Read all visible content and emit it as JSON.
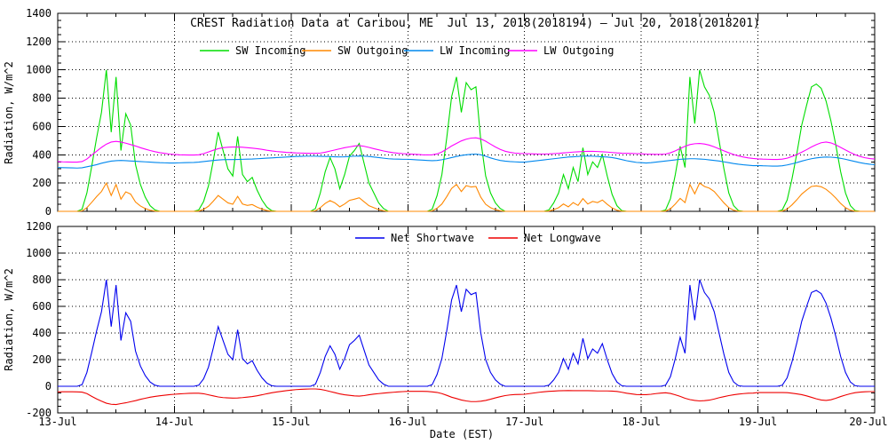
{
  "figure_bg": "#ffffff",
  "chart_data": [
    {
      "type": "line",
      "panel": "top",
      "title": "CREST Radiation Data at Caribou, ME  Jul 13, 2018(2018194) – Jul 20, 2018(2018201)",
      "ylabel": "Radiation, W/m^2",
      "ylim": [
        0,
        1400
      ],
      "yticks": [
        0,
        200,
        400,
        600,
        800,
        1000,
        1200,
        1400
      ],
      "y_minor_step": 50,
      "x_unit": "hours since Jul 13 00:00 EST",
      "x_range_hours": [
        0,
        168
      ],
      "xticks_hours": [
        0,
        24,
        48,
        72,
        96,
        120,
        144,
        168
      ],
      "x_minor_step_hours": 6,
      "xtick_labels": [
        "13-Jul",
        "14-Jul",
        "15-Jul",
        "16-Jul",
        "17-Jul",
        "18-Jul",
        "19-Jul",
        "20-Jul"
      ],
      "grid": "dotted",
      "legend_position": "top-inside",
      "series": [
        {
          "name": "SW Incoming",
          "color": "#00dd00",
          "values": [
            0,
            0,
            0,
            0,
            0,
            15,
            130,
            320,
            520,
            700,
            1000,
            560,
            950,
            430,
            690,
            610,
            330,
            190,
            100,
            40,
            10,
            0,
            0,
            0,
            0,
            0,
            0,
            0,
            0,
            10,
            70,
            180,
            360,
            560,
            430,
            300,
            250,
            530,
            260,
            210,
            240,
            150,
            80,
            30,
            5,
            0,
            0,
            0,
            0,
            0,
            0,
            0,
            0,
            20,
            130,
            280,
            380,
            300,
            160,
            260,
            390,
            430,
            480,
            340,
            200,
            130,
            60,
            20,
            0,
            0,
            0,
            0,
            0,
            0,
            0,
            0,
            0,
            15,
            110,
            260,
            520,
            810,
            950,
            700,
            910,
            860,
            880,
            500,
            250,
            130,
            60,
            20,
            0,
            0,
            0,
            0,
            0,
            0,
            0,
            0,
            0,
            10,
            60,
            130,
            260,
            160,
            310,
            210,
            450,
            260,
            350,
            310,
            400,
            250,
            120,
            40,
            5,
            0,
            0,
            0,
            0,
            0,
            0,
            0,
            0,
            10,
            90,
            260,
            460,
            310,
            950,
            620,
            1000,
            880,
            820,
            700,
            500,
            300,
            130,
            40,
            5,
            0,
            0,
            0,
            0,
            0,
            0,
            0,
            0,
            10,
            80,
            230,
            410,
            610,
            750,
            880,
            900,
            870,
            780,
            640,
            470,
            280,
            130,
            40,
            5,
            0,
            0,
            0,
            0
          ]
        },
        {
          "name": "SW Outgoing",
          "color": "#ff8800",
          "values": [
            0,
            0,
            0,
            0,
            0,
            3,
            26,
            64,
            104,
            140,
            200,
            112,
            190,
            86,
            138,
            122,
            66,
            38,
            20,
            8,
            2,
            0,
            0,
            0,
            0,
            0,
            0,
            0,
            0,
            2,
            14,
            36,
            72,
            112,
            86,
            60,
            50,
            106,
            52,
            42,
            48,
            30,
            16,
            6,
            1,
            0,
            0,
            0,
            0,
            0,
            0,
            0,
            0,
            4,
            26,
            56,
            76,
            60,
            32,
            52,
            78,
            86,
            96,
            68,
            40,
            26,
            12,
            4,
            0,
            0,
            0,
            0,
            0,
            0,
            0,
            0,
            0,
            3,
            22,
            52,
            104,
            162,
            190,
            140,
            182,
            172,
            176,
            100,
            50,
            26,
            12,
            4,
            0,
            0,
            0,
            0,
            0,
            0,
            0,
            0,
            0,
            2,
            12,
            26,
            52,
            32,
            62,
            42,
            90,
            52,
            70,
            62,
            80,
            50,
            24,
            8,
            1,
            0,
            0,
            0,
            0,
            0,
            0,
            0,
            0,
            2,
            18,
            52,
            92,
            62,
            190,
            124,
            200,
            176,
            164,
            140,
            100,
            60,
            26,
            8,
            1,
            0,
            0,
            0,
            0,
            0,
            0,
            0,
            0,
            2,
            16,
            46,
            82,
            122,
            150,
            176,
            180,
            174,
            156,
            128,
            94,
            56,
            26,
            8,
            1,
            0,
            0,
            0,
            0
          ]
        },
        {
          "name": "LW Incoming",
          "color": "#0088ee",
          "values": [
            310,
            309,
            308,
            307,
            306,
            308,
            315,
            322,
            330,
            340,
            348,
            355,
            358,
            360,
            358,
            356,
            354,
            352,
            350,
            348,
            346,
            344,
            343,
            342,
            342,
            343,
            344,
            345,
            346,
            348,
            352,
            356,
            360,
            363,
            365,
            366,
            366,
            367,
            368,
            369,
            370,
            372,
            374,
            376,
            378,
            380,
            382,
            384,
            386,
            388,
            389,
            390,
            390,
            390,
            389,
            388,
            387,
            386,
            385,
            386,
            388,
            390,
            391,
            390,
            388,
            384,
            380,
            376,
            372,
            370,
            369,
            368,
            368,
            366,
            364,
            362,
            360,
            358,
            360,
            365,
            372,
            380,
            388,
            395,
            400,
            403,
            405,
            400,
            390,
            378,
            368,
            360,
            355,
            352,
            350,
            348,
            348,
            352,
            356,
            360,
            364,
            368,
            372,
            376,
            380,
            384,
            386,
            388,
            390,
            391,
            390,
            388,
            386,
            384,
            380,
            374,
            366,
            358,
            352,
            346,
            344,
            342,
            344,
            348,
            352,
            356,
            360,
            364,
            368,
            370,
            372,
            372,
            370,
            368,
            364,
            360,
            356,
            350,
            344,
            338,
            333,
            329,
            326,
            323,
            324,
            322,
            321,
            320,
            320,
            322,
            328,
            336,
            345,
            355,
            364,
            372,
            378,
            382,
            384,
            383,
            380,
            375,
            368,
            360,
            352,
            344,
            338,
            333,
            330
          ]
        },
        {
          "name": "LW Outgoing",
          "color": "#ff00ff",
          "values": [
            352,
            350,
            349,
            348,
            348,
            352,
            370,
            398,
            425,
            452,
            475,
            490,
            495,
            490,
            482,
            472,
            462,
            450,
            440,
            430,
            422,
            415,
            410,
            405,
            402,
            400,
            399,
            398,
            398,
            400,
            408,
            420,
            432,
            443,
            450,
            453,
            455,
            455,
            453,
            450,
            447,
            443,
            438,
            432,
            427,
            423,
            420,
            417,
            415,
            413,
            412,
            411,
            410,
            410,
            412,
            418,
            426,
            434,
            442,
            450,
            456,
            462,
            465,
            460,
            452,
            443,
            435,
            427,
            420,
            415,
            411,
            408,
            406,
            404,
            402,
            400,
            399,
            400,
            406,
            420,
            440,
            462,
            480,
            498,
            510,
            518,
            520,
            512,
            496,
            475,
            455,
            438,
            425,
            417,
            412,
            409,
            408,
            407,
            406,
            405,
            405,
            406,
            408,
            410,
            413,
            416,
            419,
            421,
            423,
            424,
            424,
            423,
            421,
            419,
            416,
            413,
            411,
            410,
            409,
            408,
            407,
            405,
            404,
            403,
            403,
            405,
            414,
            428,
            444,
            460,
            472,
            478,
            480,
            476,
            468,
            456,
            442,
            428,
            414,
            402,
            392,
            384,
            378,
            374,
            371,
            369,
            368,
            367,
            367,
            369,
            376,
            388,
            402,
            418,
            436,
            455,
            472,
            485,
            490,
            484,
            470,
            452,
            434,
            416,
            400,
            388,
            379,
            373,
            370
          ]
        }
      ]
    },
    {
      "type": "line",
      "panel": "bottom",
      "ylabel": "Radiation, W/m^2",
      "xlabel": "Date (EST)",
      "ylim": [
        -200,
        1200
      ],
      "yticks": [
        -200,
        0,
        200,
        400,
        600,
        800,
        1000,
        1200
      ],
      "y_minor_step": 50,
      "x_unit": "hours since Jul 13 00:00 EST",
      "x_range_hours": [
        0,
        168
      ],
      "xticks_hours": [
        0,
        24,
        48,
        72,
        96,
        120,
        144,
        168
      ],
      "x_minor_step_hours": 6,
      "xtick_labels": [
        "13-Jul",
        "14-Jul",
        "15-Jul",
        "16-Jul",
        "17-Jul",
        "18-Jul",
        "19-Jul",
        "20-Jul"
      ],
      "grid": "dotted",
      "legend_position": "top-inside",
      "series": [
        {
          "name": "Net Shortwave",
          "color": "#0000ee",
          "values": [
            0,
            0,
            0,
            0,
            0,
            12,
            104,
            256,
            416,
            560,
            800,
            448,
            760,
            344,
            552,
            488,
            264,
            152,
            80,
            32,
            8,
            0,
            0,
            0,
            0,
            0,
            0,
            0,
            0,
            8,
            56,
            144,
            288,
            448,
            344,
            240,
            200,
            424,
            208,
            168,
            192,
            120,
            64,
            24,
            4,
            0,
            0,
            0,
            0,
            0,
            0,
            0,
            0,
            16,
            104,
            224,
            304,
            240,
            128,
            208,
            312,
            344,
            384,
            272,
            160,
            104,
            48,
            16,
            0,
            0,
            0,
            0,
            0,
            0,
            0,
            0,
            0,
            12,
            88,
            208,
            416,
            648,
            760,
            560,
            728,
            688,
            704,
            400,
            200,
            104,
            48,
            16,
            0,
            0,
            0,
            0,
            0,
            0,
            0,
            0,
            0,
            8,
            48,
            104,
            208,
            128,
            248,
            168,
            360,
            208,
            280,
            248,
            320,
            200,
            96,
            32,
            4,
            0,
            0,
            0,
            0,
            0,
            0,
            0,
            0,
            8,
            72,
            208,
            368,
            248,
            760,
            496,
            800,
            704,
            656,
            560,
            400,
            240,
            104,
            32,
            4,
            0,
            0,
            0,
            0,
            0,
            0,
            0,
            0,
            8,
            64,
            184,
            328,
            488,
            600,
            704,
            720,
            696,
            624,
            512,
            376,
            224,
            104,
            32,
            4,
            0,
            0,
            0,
            0
          ]
        },
        {
          "name": "Net Longwave",
          "color": "#ee0000",
          "values": [
            -42,
            -41,
            -41,
            -41,
            -42,
            -44,
            -55,
            -76,
            -95,
            -112,
            -127,
            -135,
            -137,
            -130,
            -124,
            -116,
            -108,
            -98,
            -90,
            -82,
            -76,
            -71,
            -67,
            -63,
            -60,
            -57,
            -55,
            -53,
            -52,
            -52,
            -56,
            -64,
            -72,
            -80,
            -85,
            -87,
            -89,
            -88,
            -85,
            -81,
            -77,
            -71,
            -64,
            -56,
            -49,
            -43,
            -38,
            -33,
            -29,
            -25,
            -23,
            -21,
            -20,
            -20,
            -23,
            -30,
            -39,
            -48,
            -57,
            -64,
            -68,
            -72,
            -74,
            -70,
            -64,
            -59,
            -55,
            -51,
            -48,
            -45,
            -42,
            -40,
            -38,
            -38,
            -38,
            -38,
            -39,
            -42,
            -46,
            -55,
            -68,
            -82,
            -92,
            -103,
            -110,
            -115,
            -115,
            -112,
            -106,
            -97,
            -87,
            -78,
            -70,
            -65,
            -62,
            -61,
            -60,
            -55,
            -50,
            -45,
            -41,
            -38,
            -36,
            -34,
            -33,
            -32,
            -33,
            -33,
            -33,
            -33,
            -34,
            -35,
            -35,
            -35,
            -36,
            -39,
            -45,
            -52,
            -57,
            -62,
            -63,
            -63,
            -60,
            -55,
            -51,
            -49,
            -54,
            -64,
            -76,
            -90,
            -100,
            -106,
            -110,
            -108,
            -104,
            -96,
            -86,
            -78,
            -70,
            -64,
            -59,
            -55,
            -52,
            -51,
            -47,
            -47,
            -47,
            -47,
            -47,
            -47,
            -48,
            -52,
            -57,
            -63,
            -72,
            -83,
            -94,
            -103,
            -106,
            -101,
            -90,
            -77,
            -66,
            -56,
            -48,
            -44,
            -41,
            -40,
            -40
          ]
        }
      ]
    }
  ]
}
